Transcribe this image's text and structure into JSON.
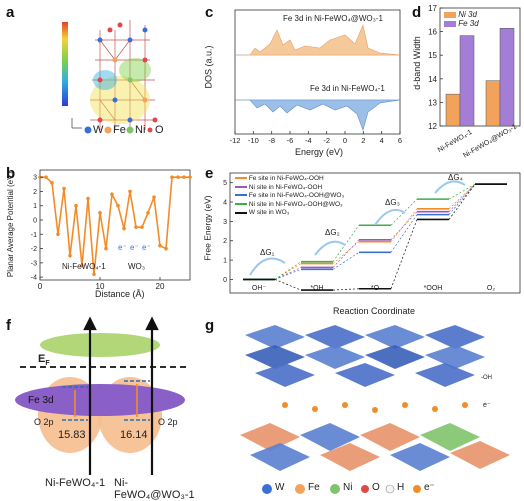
{
  "panels": {
    "a": {
      "letter": "a",
      "legend": [
        {
          "symbol_color": "#3a6fd8",
          "label": "W"
        },
        {
          "symbol_color": "#f2a25a",
          "label": "Fe"
        },
        {
          "symbol_color": "#7fc46b",
          "label": "Ni"
        },
        {
          "symbol_color": "#e04848",
          "label": "O"
        }
      ]
    },
    "b": {
      "letter": "b",
      "ylabel": "Planar Average Potential (eV)",
      "xlabel": "Distance (Å)",
      "region_labels": [
        "Ni-FeWO₄-1",
        "WO₃"
      ],
      "electron_labels": [
        "e⁻",
        "e⁻",
        "e⁻"
      ]
    },
    "c": {
      "letter": "c",
      "ylabel": "DOS (a.u.)",
      "xlabel": "Energy (eV)",
      "series_labels": [
        "Fe 3d in Ni-FeWO₄@WO₃-1",
        "Fe 3d in Ni-FeWO₄-1"
      ],
      "colors": [
        "#f6c99a",
        "#9cbfe8"
      ]
    },
    "d": {
      "letter": "d",
      "ylabel": "d-band Width"
    },
    "e": {
      "letter": "e",
      "ylabel": "Free Energy (eV)",
      "xlabel": "Reaction Coordinate",
      "delta_labels": [
        "ΔG₁",
        "ΔG₂",
        "ΔG₃",
        "ΔG₄"
      ],
      "legend": [
        {
          "label": "Fe site in Ni-FeWO₄-OOH",
          "color": "#f28c28"
        },
        {
          "label": "Ni site in Ni-FeWO₄-OOH",
          "color": "#9b59b6"
        },
        {
          "label": "Fe site in Ni-FeWO₄-OOH@WO₃",
          "color": "#3a6fd8"
        },
        {
          "label": "Ni site in Ni-FeWO₄-OOH@WO₃",
          "color": "#3cae4a"
        },
        {
          "label": "W site in WO₃",
          "color": "#111111"
        }
      ]
    },
    "f": {
      "letter": "f",
      "ef_label": "E",
      "ef_sub": "F",
      "band_labels": [
        "Fe 3d",
        "O 2p",
        "O 2p"
      ],
      "widths": [
        "15.83",
        "16.14"
      ],
      "bottom_labels": [
        "Ni-FeWO₄-1",
        "Ni-FeWO₄@WO₃-1"
      ]
    },
    "g": {
      "letter": "g",
      "label_oh": "-OH",
      "label_e": "e⁻",
      "legend": [
        {
          "label": "W",
          "color": "#3a6fd8"
        },
        {
          "label": "Fe",
          "color": "#f2a25a"
        },
        {
          "label": "Ni",
          "color": "#7fc46b"
        },
        {
          "label": "O",
          "color": "#e04848"
        },
        {
          "label": "H",
          "color": "#f5f5f5"
        },
        {
          "label": "e⁻",
          "color": "#f28c28"
        }
      ]
    }
  },
  "chart_data": [
    {
      "type": "line",
      "panel": "b",
      "x": [
        0,
        1,
        2,
        3,
        4,
        5,
        6,
        7,
        8,
        9,
        10,
        11,
        12,
        13,
        14,
        15,
        16,
        17,
        18,
        19,
        20,
        21,
        22,
        23,
        24,
        25
      ],
      "series": [
        {
          "values": [
            3,
            3,
            2.6,
            -1,
            2.2,
            -2.5,
            1,
            -3.2,
            1.5,
            -3.8,
            0.5,
            -2,
            1.8,
            1,
            -0.6,
            2,
            -0.5,
            -0.5,
            0.5,
            1.6,
            -1.8,
            -2,
            3,
            3,
            3,
            3
          ]
        }
      ],
      "xticks": [
        0,
        10,
        20
      ],
      "yticks": [
        3,
        2,
        1,
        0,
        -1,
        -2,
        -3,
        -4
      ],
      "xlim": [
        0,
        25
      ],
      "ylim": [
        -4.2,
        3.5
      ]
    },
    {
      "type": "area",
      "panel": "c",
      "xticks": [
        -12,
        -10,
        -8,
        -6,
        -4,
        -2,
        0,
        2,
        4,
        6
      ],
      "xlim": [
        -12,
        6
      ]
    },
    {
      "type": "bar",
      "panel": "d",
      "categories": [
        "Ni-FeWO₄-1",
        "Ni-FeWO₄@WO₃-1"
      ],
      "series": [
        {
          "name": "Ni 3d",
          "color": "#f2a25a",
          "values": [
            13.35,
            13.92
          ]
        },
        {
          "name": "Fe 3d",
          "color": "#a47ed6",
          "values": [
            15.83,
            16.14
          ]
        }
      ],
      "yticks": [
        12,
        13,
        14,
        15,
        16,
        17
      ],
      "ylim": [
        12,
        17
      ]
    },
    {
      "type": "line",
      "panel": "e",
      "categories": [
        "OH⁻",
        "*OH",
        "*O",
        "*OOH",
        "O₂"
      ],
      "yticks": [
        0,
        1,
        2,
        3,
        4,
        5
      ],
      "ylim": [
        -0.7,
        5.5
      ],
      "series": [
        {
          "color": "#f28c28",
          "values": [
            0,
            0.82,
            1.95,
            3.65,
            4.92
          ]
        },
        {
          "color": "#9b59b6",
          "values": [
            0,
            0.62,
            2.05,
            3.5,
            4.92
          ]
        },
        {
          "color": "#3a6fd8",
          "values": [
            0,
            0.52,
            1.4,
            3.35,
            4.92
          ]
        },
        {
          "color": "#3cae4a",
          "values": [
            0,
            0.92,
            2.8,
            4.15,
            4.92
          ]
        },
        {
          "color": "#111111",
          "values": [
            0,
            -0.55,
            -0.48,
            3.1,
            4.92
          ]
        }
      ]
    }
  ]
}
